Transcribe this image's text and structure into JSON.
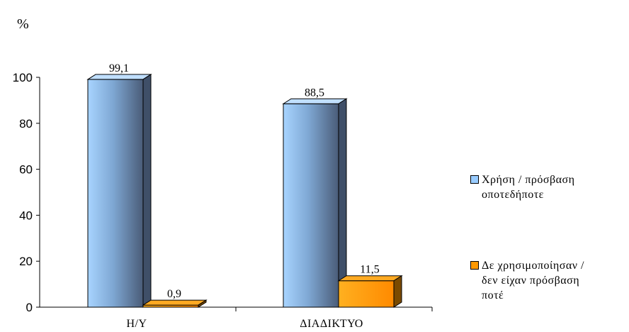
{
  "chart_data": {
    "type": "bar",
    "style": "3d-clustered-column",
    "ylabel": "%",
    "ylim": [
      0,
      100
    ],
    "yticks": [
      0,
      20,
      40,
      60,
      80,
      100
    ],
    "categories": [
      "Η/Υ",
      "ΔΙΑΔΙΚΤΥΟ"
    ],
    "series": [
      {
        "name": "Χρήση / πρόσβαση οποτεδήποτε",
        "values": [
          99.1,
          88.5
        ],
        "value_labels": [
          "99,1",
          "88,5"
        ],
        "color": "#99ccff"
      },
      {
        "name": "Δε χρησιμοποίησαν / δεν είχαν πρόσβαση ποτέ",
        "values": [
          0.9,
          11.5
        ],
        "value_labels": [
          "0,9",
          "11,5"
        ],
        "color": "#ff9900"
      }
    ],
    "grid": false,
    "legend": "right"
  }
}
